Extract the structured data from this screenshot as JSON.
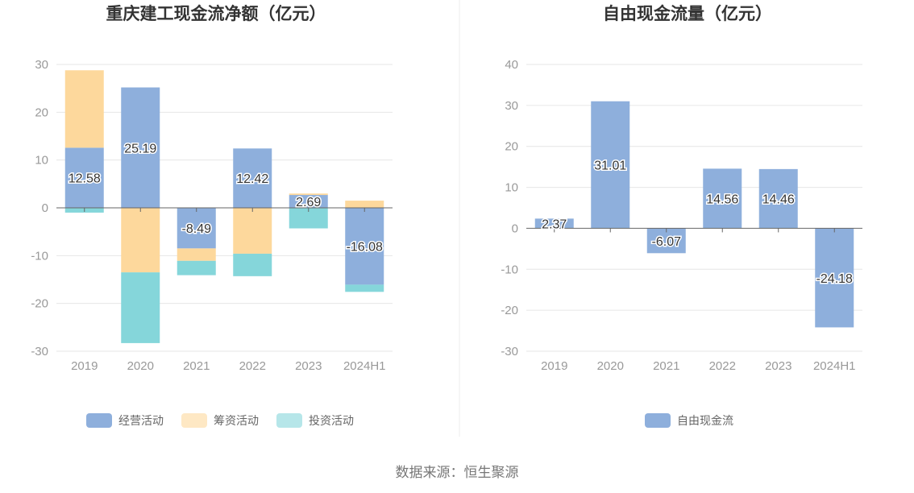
{
  "colors": {
    "operating": "#8eafdc",
    "financing": "#fdd89c",
    "investing": "#85d6da",
    "free_cash_flow": "#8eafdc",
    "axis": "#666666",
    "grid": "#e6e6e6"
  },
  "source": "数据来源：恒生聚源",
  "chart_data": [
    {
      "type": "bar",
      "stacked": true,
      "title": "重庆建工现金流净额（亿元）",
      "categories": [
        "2019",
        "2020",
        "2021",
        "2022",
        "2023",
        "2024H1"
      ],
      "ylim": [
        -30,
        30
      ],
      "yticks": [
        30,
        20,
        10,
        0,
        -10,
        -20,
        -30
      ],
      "grid": true,
      "legend_position": "bottom",
      "series": [
        {
          "name": "经营活动",
          "values": [
            12.58,
            25.19,
            -8.49,
            12.42,
            2.69,
            -16.08
          ]
        },
        {
          "name": "筹资活动",
          "values": [
            16.2,
            -13.5,
            -2.6,
            -9.6,
            0.3,
            1.5
          ]
        },
        {
          "name": "投资活动",
          "values": [
            -1.0,
            -14.8,
            -3.0,
            -4.7,
            -4.3,
            -1.5
          ]
        }
      ],
      "data_labels": [
        "12.58",
        "25.19",
        "-8.49",
        "12.42",
        "2.69",
        "-16.08"
      ]
    },
    {
      "type": "bar",
      "title": "自由现金流量（亿元）",
      "categories": [
        "2019",
        "2020",
        "2021",
        "2022",
        "2023",
        "2024H1"
      ],
      "ylim": [
        -30,
        40
      ],
      "yticks": [
        40,
        30,
        20,
        10,
        0,
        -10,
        -20,
        -30
      ],
      "grid": true,
      "legend_position": "bottom",
      "series": [
        {
          "name": "自由现金流",
          "values": [
            2.37,
            31.01,
            -6.07,
            14.56,
            14.46,
            -24.18
          ]
        }
      ],
      "data_labels": [
        "2.37",
        "31.01",
        "-6.07",
        "14.56",
        "14.46",
        "-24.18"
      ]
    }
  ]
}
